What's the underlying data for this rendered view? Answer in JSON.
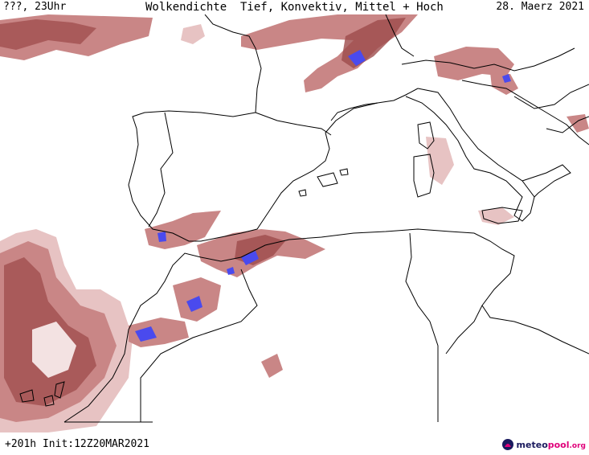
{
  "header": {
    "location": "???, 23Uhr",
    "title": "Wolkendichte  Tief, Konvektiv, Mittel + Hoch",
    "date": "28. Maerz 2021"
  },
  "footer": {
    "forecast_info": "+201h Init:12Z20MAR2021"
  },
  "brand": {
    "name_part1": "meteo",
    "name_part2": "pool",
    "suffix": ".org"
  },
  "colors": {
    "coast_line": "#000000",
    "cloud_light": "#e7c3c3",
    "cloud_medium": "#c98686",
    "cloud_dark": "#9e4b4b",
    "convective": "#4a4aee",
    "brand_navy": "#1a1a5e",
    "brand_pink": "#e0007a"
  },
  "icons": {
    "brand_logo": "meteopool-logo-icon"
  }
}
